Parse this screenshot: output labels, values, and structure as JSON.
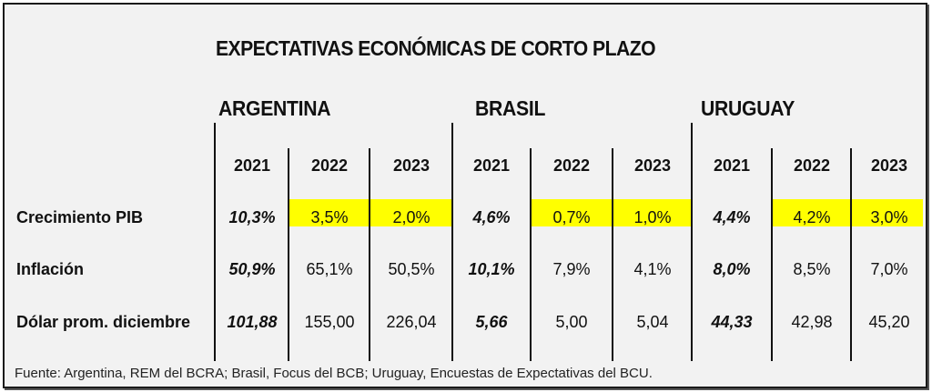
{
  "title": "EXPECTATIVAS ECONÓMICAS DE CORTO PLAZO",
  "countries": [
    "ARGENTINA",
    "BRASIL",
    "URUGUAY"
  ],
  "years": [
    "2021",
    "2022",
    "2023",
    "2021",
    "2022",
    "2023",
    "2021",
    "2022",
    "2023"
  ],
  "highlight_color": "#ffff00",
  "rows": [
    {
      "label": "Crecimiento PIB",
      "values": [
        "10,3%",
        "3,5%",
        "2,0%",
        "4,6%",
        "0,7%",
        "1,0%",
        "4,4%",
        "4,2%",
        "3,0%"
      ]
    },
    {
      "label": "Inflación",
      "values": [
        "50,9%",
        "65,1%",
        "50,5%",
        "10,1%",
        "7,9%",
        "4,1%",
        "8,0%",
        "8,5%",
        "7,0%"
      ]
    },
    {
      "label": "Dólar prom. diciembre",
      "values": [
        "101,88",
        "155,00",
        "226,04",
        "5,66",
        "5,00",
        "5,04",
        "44,33",
        "42,98",
        "45,20"
      ]
    }
  ],
  "source": "Fuente: Argentina, REM del BCRA; Brasil, Focus del BCB; Uruguay, Encuestas de Expectativas del BCU."
}
